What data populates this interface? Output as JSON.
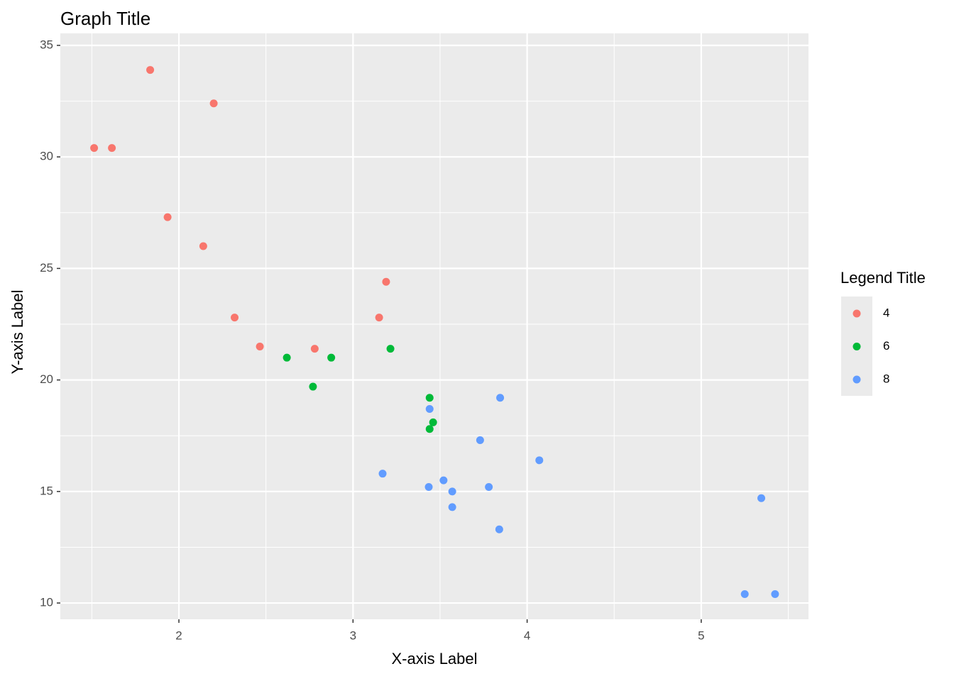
{
  "chart_data": {
    "type": "scatter",
    "title": "Graph Title",
    "x_label": "X-axis Label",
    "y_label": "Y-axis Label",
    "legend_title": "Legend Title",
    "legend_position": "right",
    "grid": true,
    "xlim": [
      1.319,
      5.616
    ],
    "ylim": [
      9.27,
      35.54
    ],
    "xticks": [
      2,
      3,
      4,
      5
    ],
    "yticks": [
      10,
      15,
      20,
      25,
      30,
      35
    ],
    "series": [
      {
        "name": "4",
        "color": "#f8766d",
        "x": [
          2.32,
          3.19,
          3.15,
          2.2,
          1.615,
          1.835,
          2.465,
          1.935,
          2.14,
          1.513,
          2.78
        ],
        "values": [
          22.8,
          24.4,
          22.8,
          32.4,
          30.4,
          33.9,
          21.5,
          27.3,
          26.0,
          30.4,
          21.4
        ]
      },
      {
        "name": "6",
        "color": "#00ba38",
        "x": [
          2.62,
          2.875,
          3.215,
          3.46,
          3.44,
          3.44,
          2.77
        ],
        "values": [
          21.0,
          21.0,
          21.4,
          18.1,
          19.2,
          17.8,
          19.7
        ]
      },
      {
        "name": "8",
        "color": "#619cff",
        "x": [
          3.44,
          3.57,
          4.07,
          3.73,
          3.78,
          5.25,
          5.424,
          5.345,
          3.52,
          3.435,
          3.84,
          3.845,
          3.17,
          3.57
        ],
        "values": [
          18.7,
          14.3,
          16.4,
          17.3,
          15.2,
          10.4,
          10.4,
          14.7,
          15.5,
          15.2,
          13.3,
          19.2,
          15.8,
          15.0
        ]
      }
    ]
  }
}
